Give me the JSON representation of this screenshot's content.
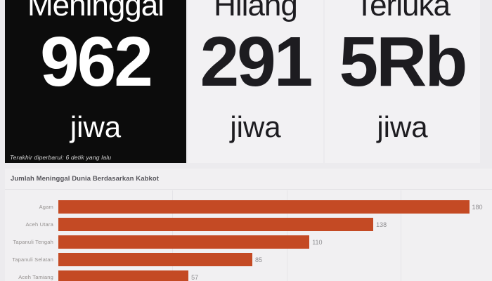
{
  "scorecards": [
    {
      "label": "Meninggal",
      "value": "962",
      "unit": "jiwa",
      "footnote": "Terakhir diperbarui: 6 detik yang lalu"
    },
    {
      "label": "Hilang",
      "value": "291",
      "unit": "jiwa"
    },
    {
      "label": "Terluka",
      "value": "5Rb",
      "unit": "jiwa"
    }
  ],
  "chart_data": {
    "type": "bar",
    "orientation": "horizontal",
    "title": "Jumlah Meninggal Dunia Berdasarkan Kabkot",
    "categories": [
      "Agam",
      "Aceh Utara",
      "Tapanuli Tengah",
      "Tapanuli Selatan",
      "Aceh Tamiang"
    ],
    "values": [
      180,
      138,
      110,
      85,
      57
    ],
    "xlabel": "",
    "ylabel": "",
    "xlim": [
      0,
      190
    ],
    "gridlines": [
      50,
      100,
      150
    ],
    "grid": "on",
    "legend": "none",
    "value_labels": "outside-end",
    "bar_color": "#c44a24"
  },
  "colors": {
    "page_bg": "#ecebee",
    "card_dark_bg": "#0c0c0c",
    "card_light_bg": "#f2f1f3",
    "panel_bg": "#f1f0f2",
    "bar": "#c44a24",
    "value_label": "#8e8d90",
    "category_label": "#94908f",
    "chart_title": "#55545a"
  }
}
